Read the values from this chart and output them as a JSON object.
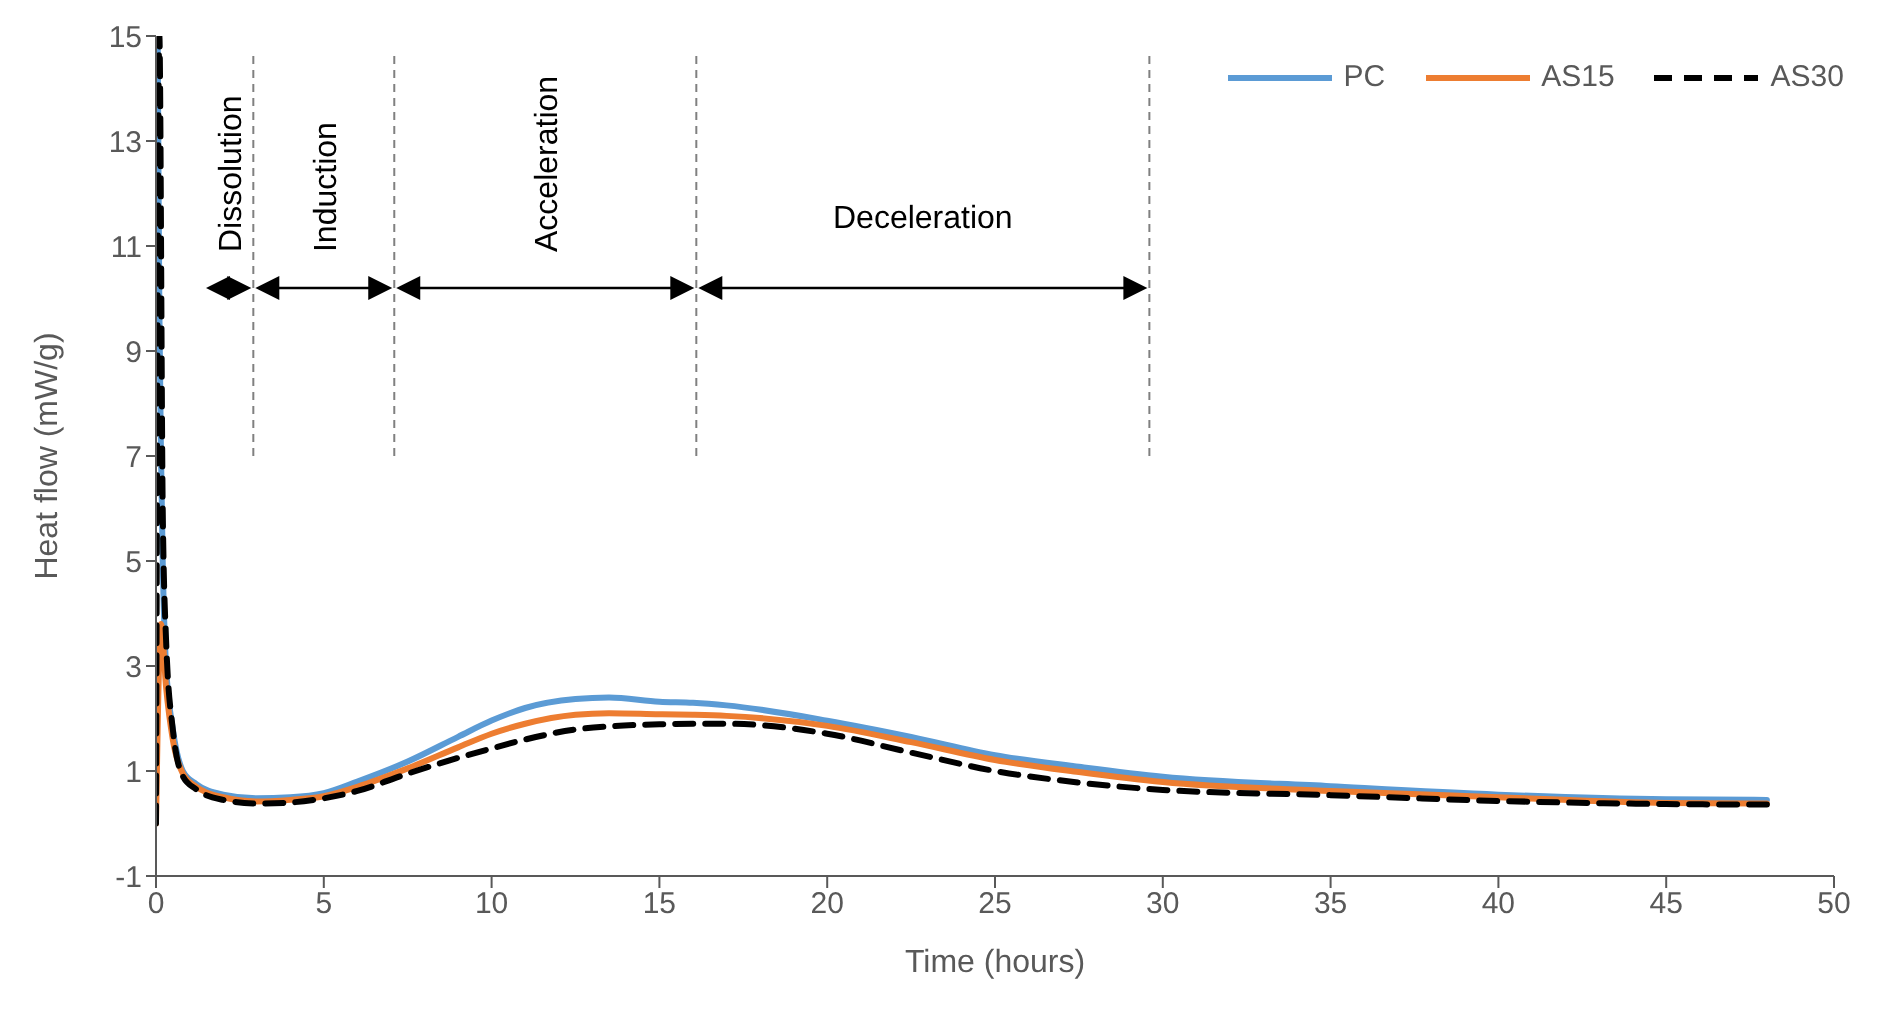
{
  "chart_data": {
    "type": "line",
    "xlabel": "Time (hours)",
    "ylabel": "Heat flow (mW/g)",
    "xlim": [
      0,
      50
    ],
    "xticks": [
      0,
      5,
      10,
      15,
      20,
      25,
      30,
      35,
      40,
      45,
      50
    ],
    "ylim": [
      -1,
      15
    ],
    "yticks": [
      -1,
      1,
      3,
      5,
      7,
      9,
      11,
      13,
      15
    ],
    "grid": false,
    "legend": "top right",
    "marker": "none",
    "series": [
      {
        "name": "PC",
        "color": "#5b9bd5",
        "line_style": "solid",
        "x": [
          0.05,
          0.1,
          0.15,
          0.2,
          0.3,
          0.5,
          0.8,
          1.2,
          2,
          3,
          4,
          5,
          6,
          7.5,
          9,
          10,
          11,
          12.5,
          13.5,
          15,
          16,
          17,
          20,
          22.5,
          25,
          27.5,
          30,
          35,
          40,
          45,
          48
        ],
        "values": [
          15,
          9.8,
          7,
          5,
          3,
          1.8,
          1.0,
          0.75,
          0.55,
          0.48,
          0.5,
          0.58,
          0.8,
          1.18,
          1.65,
          1.96,
          2.2,
          2.37,
          2.4,
          2.32,
          2.3,
          2.25,
          1.96,
          1.65,
          1.3,
          1.08,
          0.89,
          0.71,
          0.55,
          0.46,
          0.45
        ]
      },
      {
        "name": "AS15",
        "color": "#ed7d31",
        "line_style": "solid",
        "x": [
          0,
          0.15,
          0.3,
          0.5,
          0.8,
          1.2,
          2,
          3,
          4,
          5,
          6,
          7.5,
          9,
          10,
          11,
          12.5,
          13.5,
          15,
          16,
          17,
          20,
          22.5,
          25,
          27.5,
          30,
          35,
          40,
          45,
          48
        ],
        "values": [
          0,
          3.8,
          2.6,
          1.6,
          0.95,
          0.7,
          0.5,
          0.42,
          0.45,
          0.52,
          0.7,
          1.05,
          1.45,
          1.71,
          1.9,
          2.07,
          2.1,
          2.08,
          2.07,
          2.05,
          1.86,
          1.55,
          1.21,
          0.98,
          0.79,
          0.62,
          0.5,
          0.39,
          0.38
        ]
      },
      {
        "name": "AS30",
        "color": "#000000",
        "line_style": "dashed",
        "x": [
          0,
          0.1,
          0.2,
          0.3,
          0.5,
          0.8,
          1.2,
          2,
          3,
          4,
          5,
          6,
          7.5,
          9,
          10,
          11,
          12.5,
          13.5,
          15,
          16,
          17,
          20,
          22.5,
          25,
          27.5,
          30,
          35,
          40,
          45,
          48
        ],
        "values": [
          0,
          15,
          6,
          3.5,
          1.8,
          0.9,
          0.65,
          0.45,
          0.38,
          0.4,
          0.48,
          0.62,
          0.95,
          1.25,
          1.43,
          1.6,
          1.79,
          1.85,
          1.89,
          1.9,
          1.9,
          1.71,
          1.35,
          1.0,
          0.78,
          0.64,
          0.54,
          0.43,
          0.37,
          0.36
        ]
      }
    ],
    "ref_lines": [
      {
        "axis": "x",
        "value": 2.9,
        "color": "#808080",
        "line_style": "dashed"
      },
      {
        "axis": "x",
        "value": 7.1,
        "color": "#808080",
        "line_style": "dashed"
      },
      {
        "axis": "x",
        "value": 16.1,
        "color": "#808080",
        "line_style": "dashed"
      },
      {
        "axis": "x",
        "value": 29.6,
        "color": "#808080",
        "line_style": "dashed"
      }
    ],
    "annotations": [
      "Dissolution",
      "Induction",
      "Acceleration",
      "Deceleration"
    ]
  }
}
